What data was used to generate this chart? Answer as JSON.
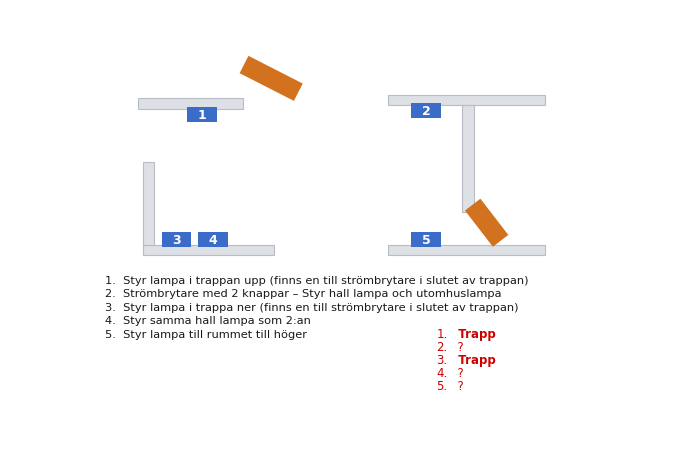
{
  "bg_color": "#ffffff",
  "switch_color": "#3b6cc7",
  "switch_text_color": "#ffffff",
  "bar_color": "#dde0e5",
  "bar_edge_color": "#b8bcc4",
  "orange_color": "#d2711e",
  "text_color": "#1a1a1a",
  "red_color": "#cc0000",
  "list_items": [
    "Styr lampa i trappan upp (finns en till strömbrytare i slutet av trappan)",
    "Strömbrytare med 2 knappar – Styr hall lampa och utomhuslampa",
    "Styr lampa i trappa ner (finns en till strömbrytare i slutet av trappan)",
    "Styr samma hall lampa som 2:an",
    "Styr lampa till rummet till höger"
  ],
  "red_labels": [
    "1.",
    "2.",
    "3.",
    "4.",
    "5."
  ],
  "red_values": [
    "  Trapp",
    "  ?",
    "  Trapp",
    "  ?",
    "  ?"
  ]
}
